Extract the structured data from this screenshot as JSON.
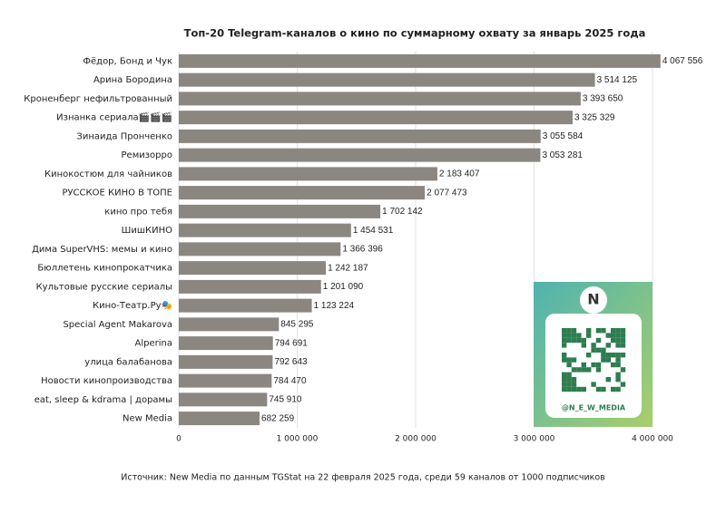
{
  "chart_data": {
    "type": "barh",
    "title": "Топ-20 Telegram-каналов о кино по суммарному охвату за январь 2025 года",
    "source": "Источник: New Media по данным TGStat на 22 февраля 2025 года, среди 59 каналов от 1000 подписчиков",
    "annotations": [
      "@N_E_W_MEDIA"
    ],
    "categories": [
      "Фёдор, Бонд и Чук",
      "Арина Бородина",
      "Кроненберг нефильтрованный",
      "Изнанка сериала🎬🎬🎬",
      "Зинаида Пронченко",
      "Ремизорро",
      "Кинокостюм для чайников",
      "РУССКОЕ КИНО В ТОПЕ",
      "кино про тебя",
      "ШишКИНО",
      "Дима SuperVHS: мемы и кино",
      "Бюллетень кинопрокатчика",
      "Культовые русские сериалы",
      "Кино-Театр.Ру🎭",
      "Special Agent Makarova",
      "Alperina",
      "улица балабанова",
      "Новости кинопроизводства",
      "eat, sleep & kdrama | дорамы",
      "New Media"
    ],
    "values": [
      4067556,
      3514125,
      3393650,
      3325329,
      3055584,
      3053281,
      2183407,
      2077473,
      1702142,
      1454531,
      1366396,
      1242187,
      1201090,
      1123224,
      845295,
      794691,
      792643,
      784470,
      745910,
      682259
    ],
    "value_labels": [
      "4 067 556",
      "3 514 125",
      "3 393 650",
      "3 325 329",
      "3 055 584",
      "3 053 281",
      "2 183 407",
      "2 077 473",
      "1 702 142",
      "1 454 531",
      "1 366 396",
      "1 242 187",
      "1 201 090",
      "1 123 224",
      "845 295",
      "794 691",
      "792 643",
      "784 470",
      "745 910",
      "682 259"
    ],
    "color": "#8c8681",
    "xlim": [
      0,
      4000000
    ],
    "xticks": [
      0,
      {
        "value": 1000000,
        "label": "1 000 000"
      },
      {
        "value": 2000000,
        "label": "2 000 000"
      },
      {
        "value": 3000000,
        "label": "3 000 000"
      },
      {
        "value": 4000000,
        "label": "4 000 000"
      }
    ],
    "grid": true
  }
}
